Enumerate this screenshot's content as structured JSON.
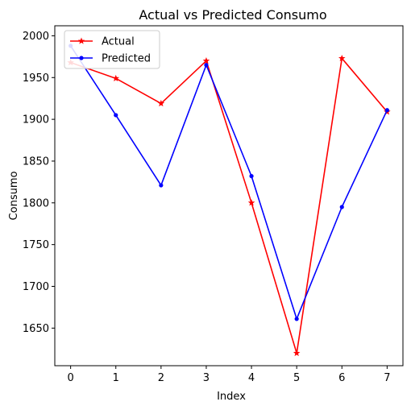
{
  "chart_data": {
    "type": "line",
    "title": "Actual vs Predicted Consumo",
    "xlabel": "Index",
    "ylabel": "Consumo",
    "x": [
      0,
      1,
      2,
      3,
      4,
      5,
      6,
      7
    ],
    "xlim": [
      -0.35,
      7.35
    ],
    "ylim": [
      1605,
      2012
    ],
    "xticks": [
      "0",
      "1",
      "2",
      "3",
      "4",
      "5",
      "6",
      "7"
    ],
    "yticks": [
      1650,
      1700,
      1750,
      1800,
      1850,
      1900,
      1950,
      2000
    ],
    "grid": false,
    "legend_position": "top-left",
    "series": [
      {
        "name": "Actual",
        "color": "#ff0000",
        "marker": "star",
        "values": [
          1968,
          1949,
          1919,
          1970,
          1800,
          1620,
          1973,
          1909
        ]
      },
      {
        "name": "Predicted",
        "color": "#0000ff",
        "marker": "dot",
        "values": [
          1988,
          1905,
          1821,
          1965,
          1832,
          1661,
          1795,
          1911
        ]
      }
    ]
  }
}
